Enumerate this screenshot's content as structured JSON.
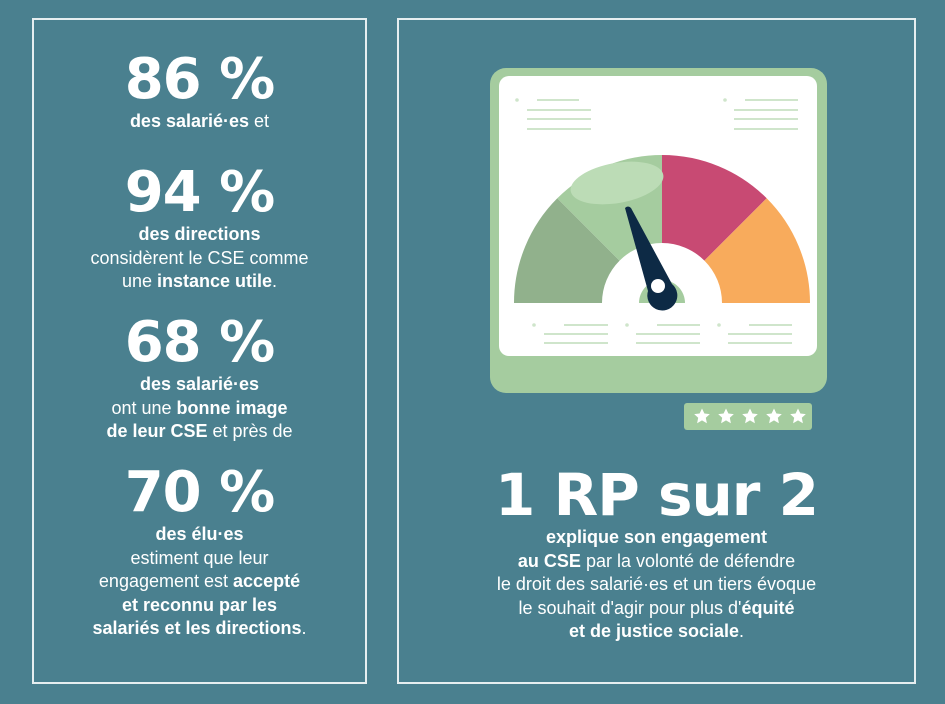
{
  "left_panel": {
    "stats": [
      {
        "value": "86 %",
        "lines": [
          [
            {
              "t": "des salarié·es",
              "b": true
            },
            {
              "t": " et",
              "b": false
            }
          ]
        ]
      },
      {
        "value": "94 %",
        "lines": [
          [
            {
              "t": "des directions",
              "b": true
            }
          ],
          [
            {
              "t": "considèrent le CSE comme",
              "b": false
            }
          ],
          [
            {
              "t": "une ",
              "b": false
            },
            {
              "t": "instance utile",
              "b": true
            },
            {
              "t": ".",
              "b": false
            }
          ]
        ]
      },
      {
        "value": "68 %",
        "lines": [
          [
            {
              "t": "des salarié·es",
              "b": true
            }
          ],
          [
            {
              "t": "ont une ",
              "b": false
            },
            {
              "t": "bonne image",
              "b": true
            }
          ],
          [
            {
              "t": "de leur CSE",
              "b": true
            },
            {
              "t": " et près de",
              "b": false
            }
          ]
        ]
      },
      {
        "value": "70 %",
        "lines": [
          [
            {
              "t": "des élu·es",
              "b": true
            }
          ],
          [
            {
              "t": "estiment que leur",
              "b": false
            }
          ],
          [
            {
              "t": "engagement est ",
              "b": false
            },
            {
              "t": "accepté",
              "b": true
            }
          ],
          [
            {
              "t": "et reconnu par les",
              "b": true
            }
          ],
          [
            {
              "t": "salariés et les directions",
              "b": true
            },
            {
              "t": ".",
              "b": false
            }
          ]
        ]
      }
    ]
  },
  "right_panel": {
    "headline": "1 RP sur 2",
    "lines": [
      [
        {
          "t": "explique son engagement",
          "b": true
        }
      ],
      [
        {
          "t": "au CSE",
          "b": true
        },
        {
          "t": " par la volonté de défendre",
          "b": false
        }
      ],
      [
        {
          "t": "le droit des salarié·es et un tiers évoque",
          "b": false
        }
      ],
      [
        {
          "t": "le souhait d'agir pour plus d'",
          "b": false
        },
        {
          "t": "équité",
          "b": true
        }
      ],
      [
        {
          "t": "et de justice sociale",
          "b": true
        },
        {
          "t": ".",
          "b": false
        }
      ]
    ],
    "illustration": {
      "icon": "gauge-meter-icon",
      "rating_stars": 5,
      "colors": {
        "frame": "#a5cc9f",
        "screen": "#ffffff",
        "segment_dark_green": "#91b18c",
        "segment_light_green": "#a5cc9f",
        "segment_highlight": "#bcdcb6",
        "segment_pink": "#c84a73",
        "segment_orange": "#f8ab5c",
        "needle": "#0d2a45",
        "placeholder_lines": "#cfe5cb"
      }
    }
  },
  "colors": {
    "background": "#4a808f",
    "border": "#e6eef0",
    "text": "#ffffff"
  }
}
